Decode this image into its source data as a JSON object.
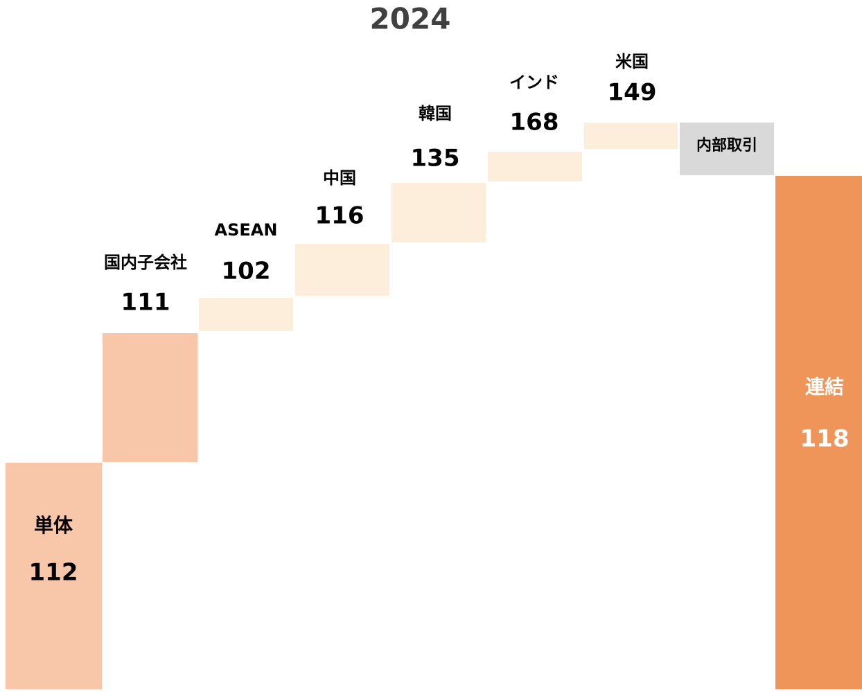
{
  "title": "2024",
  "steps": [
    {
      "label": "単体",
      "value": 112
    },
    {
      "label": "国内子会社",
      "value": 111
    },
    {
      "label": "ASEAN",
      "value": 102
    },
    {
      "label": "中国",
      "value": 116
    },
    {
      "label": "韓国",
      "value": 135
    },
    {
      "label": "インド",
      "value": 168
    },
    {
      "label": "米国",
      "value": 149
    },
    {
      "label": "内部取引"
    },
    {
      "label": "連結",
      "value": 118
    }
  ]
}
